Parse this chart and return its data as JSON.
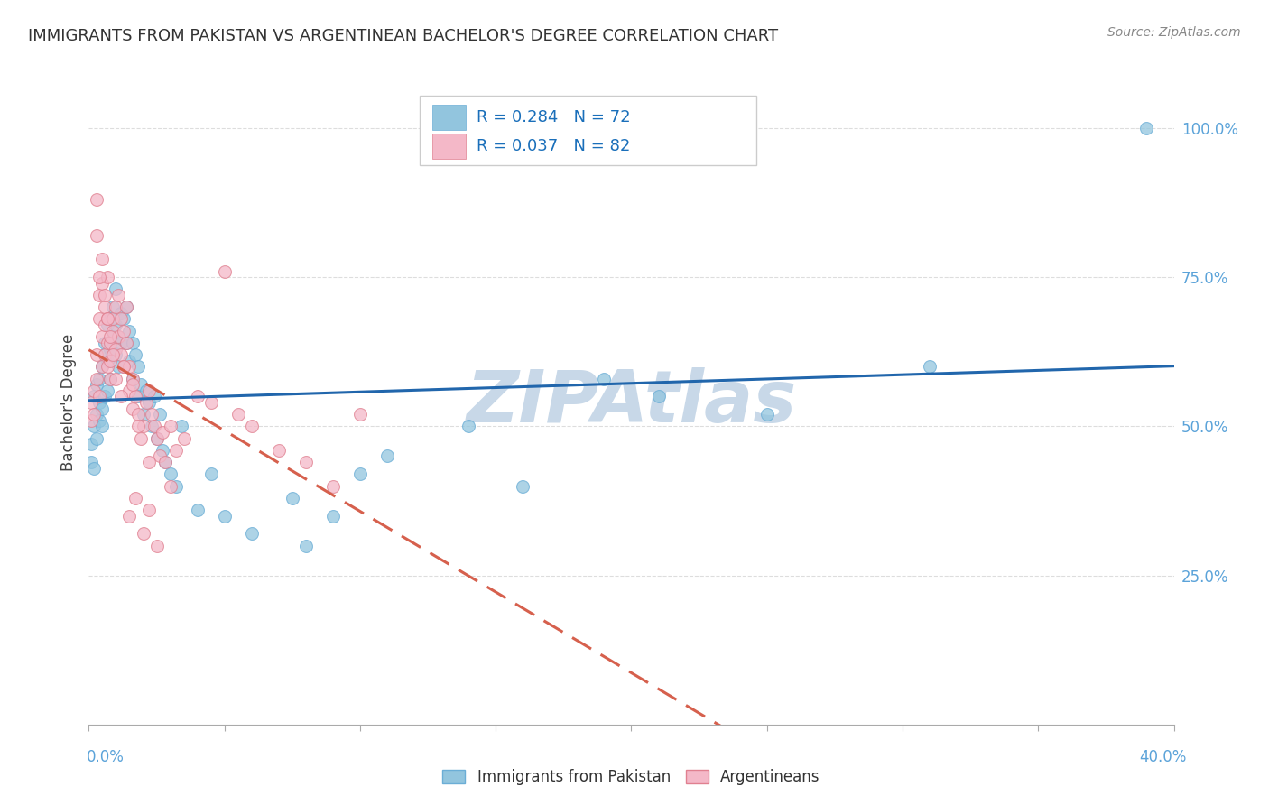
{
  "title": "IMMIGRANTS FROM PAKISTAN VS ARGENTINEAN BACHELOR'S DEGREE CORRELATION CHART",
  "source": "Source: ZipAtlas.com",
  "ylabel": "Bachelor's Degree",
  "xlim": [
    0.0,
    0.4
  ],
  "ylim": [
    0.0,
    1.08
  ],
  "yticks": [
    0.25,
    0.5,
    0.75,
    1.0
  ],
  "ytick_labels": [
    "25.0%",
    "50.0%",
    "75.0%",
    "100.0%"
  ],
  "blue_R": "0.284",
  "blue_N": "72",
  "pink_R": "0.037",
  "pink_N": "82",
  "blue_color": "#92c5de",
  "pink_color": "#f4b8c8",
  "blue_edge_color": "#6baed6",
  "pink_edge_color": "#e08090",
  "blue_line_color": "#2166ac",
  "pink_line_color": "#d6604d",
  "grid_color": "#dddddd",
  "bg_color": "#ffffff",
  "watermark_color": "#c8d8e8",
  "blue_scatter_x": [
    0.001,
    0.001,
    0.002,
    0.002,
    0.002,
    0.003,
    0.003,
    0.003,
    0.004,
    0.004,
    0.004,
    0.005,
    0.005,
    0.005,
    0.006,
    0.006,
    0.006,
    0.007,
    0.007,
    0.007,
    0.008,
    0.008,
    0.008,
    0.009,
    0.009,
    0.01,
    0.01,
    0.01,
    0.011,
    0.011,
    0.012,
    0.012,
    0.013,
    0.013,
    0.014,
    0.014,
    0.015,
    0.015,
    0.016,
    0.016,
    0.017,
    0.018,
    0.018,
    0.019,
    0.02,
    0.021,
    0.022,
    0.023,
    0.024,
    0.025,
    0.026,
    0.027,
    0.028,
    0.03,
    0.032,
    0.034,
    0.04,
    0.045,
    0.05,
    0.06,
    0.075,
    0.08,
    0.09,
    0.1,
    0.11,
    0.14,
    0.16,
    0.19,
    0.21,
    0.25,
    0.31,
    0.39
  ],
  "blue_scatter_y": [
    0.44,
    0.47,
    0.43,
    0.5,
    0.55,
    0.52,
    0.48,
    0.57,
    0.51,
    0.54,
    0.58,
    0.5,
    0.6,
    0.53,
    0.55,
    0.62,
    0.64,
    0.56,
    0.61,
    0.67,
    0.58,
    0.63,
    0.68,
    0.65,
    0.7,
    0.62,
    0.67,
    0.73,
    0.6,
    0.65,
    0.64,
    0.69,
    0.6,
    0.68,
    0.64,
    0.7,
    0.61,
    0.66,
    0.58,
    0.64,
    0.62,
    0.55,
    0.6,
    0.57,
    0.52,
    0.56,
    0.54,
    0.5,
    0.55,
    0.48,
    0.52,
    0.46,
    0.44,
    0.42,
    0.4,
    0.5,
    0.36,
    0.42,
    0.35,
    0.32,
    0.38,
    0.3,
    0.35,
    0.42,
    0.45,
    0.5,
    0.4,
    0.58,
    0.55,
    0.52,
    0.6,
    1.0
  ],
  "pink_scatter_x": [
    0.001,
    0.001,
    0.002,
    0.002,
    0.003,
    0.003,
    0.003,
    0.004,
    0.004,
    0.004,
    0.005,
    0.005,
    0.005,
    0.006,
    0.006,
    0.006,
    0.007,
    0.007,
    0.007,
    0.007,
    0.008,
    0.008,
    0.008,
    0.009,
    0.009,
    0.01,
    0.01,
    0.011,
    0.011,
    0.012,
    0.012,
    0.013,
    0.013,
    0.014,
    0.014,
    0.015,
    0.015,
    0.016,
    0.016,
    0.017,
    0.018,
    0.019,
    0.02,
    0.021,
    0.022,
    0.023,
    0.024,
    0.025,
    0.026,
    0.027,
    0.028,
    0.03,
    0.032,
    0.035,
    0.04,
    0.045,
    0.05,
    0.055,
    0.06,
    0.07,
    0.08,
    0.09,
    0.1,
    0.015,
    0.017,
    0.02,
    0.022,
    0.025,
    0.003,
    0.004,
    0.005,
    0.006,
    0.007,
    0.008,
    0.009,
    0.01,
    0.012,
    0.013,
    0.016,
    0.018,
    0.022,
    0.03
  ],
  "pink_scatter_y": [
    0.51,
    0.54,
    0.52,
    0.56,
    0.88,
    0.58,
    0.62,
    0.55,
    0.68,
    0.72,
    0.6,
    0.65,
    0.74,
    0.62,
    0.67,
    0.7,
    0.64,
    0.6,
    0.68,
    0.75,
    0.61,
    0.64,
    0.58,
    0.66,
    0.68,
    0.63,
    0.7,
    0.65,
    0.72,
    0.62,
    0.68,
    0.6,
    0.66,
    0.64,
    0.7,
    0.56,
    0.6,
    0.53,
    0.58,
    0.55,
    0.52,
    0.48,
    0.5,
    0.54,
    0.56,
    0.52,
    0.5,
    0.48,
    0.45,
    0.49,
    0.44,
    0.5,
    0.46,
    0.48,
    0.55,
    0.54,
    0.76,
    0.52,
    0.5,
    0.46,
    0.44,
    0.4,
    0.52,
    0.35,
    0.38,
    0.32,
    0.36,
    0.3,
    0.82,
    0.75,
    0.78,
    0.72,
    0.68,
    0.65,
    0.62,
    0.58,
    0.55,
    0.6,
    0.57,
    0.5,
    0.44,
    0.4
  ]
}
